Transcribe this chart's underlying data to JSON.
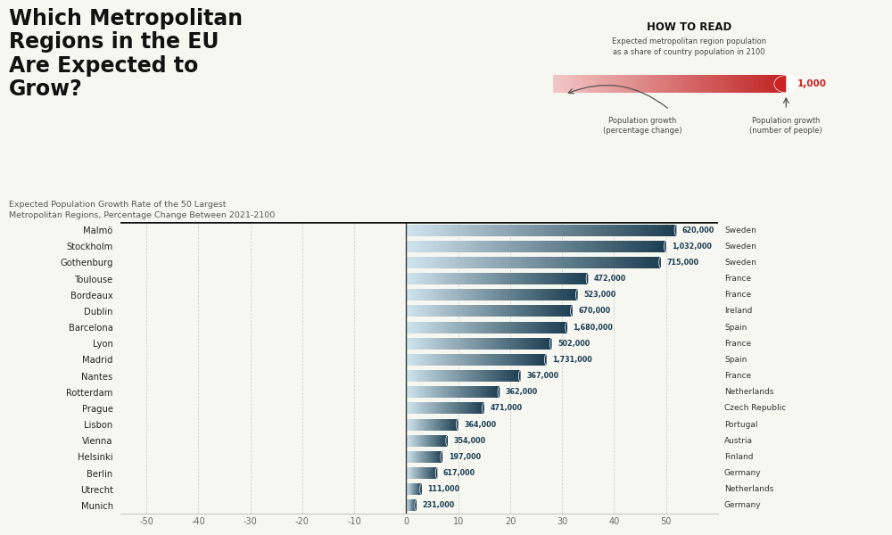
{
  "title_main": "Which Metropolitan\nRegions in the EU\nAre Expected to\nGrow?",
  "subtitle": "Expected Population Growth Rate of the 50 Largest\nMetropolitan Regions, Percentage Change Between 2021-2100",
  "cities": [
    "Malmö",
    "Stockholm",
    "Gothenburg",
    "Toulouse",
    "Bordeaux",
    "Dublin",
    "Barcelona",
    "Lyon",
    "Madrid",
    "Nantes",
    "Rotterdam",
    "Prague",
    "Lisbon",
    "Vienna",
    "Helsinki",
    "Berlin",
    "Utrecht",
    "Munich"
  ],
  "countries": [
    "Sweden",
    "Sweden",
    "Sweden",
    "France",
    "France",
    "Ireland",
    "Spain",
    "France",
    "Spain",
    "France",
    "Netherlands",
    "Czech Republic",
    "Portugal",
    "Austria",
    "Finland",
    "Germany",
    "Netherlands",
    "Germany"
  ],
  "growth_pct": [
    52,
    50,
    49,
    35,
    33,
    32,
    31,
    28,
    27,
    22,
    18,
    15,
    10,
    8,
    7,
    6,
    3,
    2
  ],
  "population_added": [
    "620,000",
    "1,032,000",
    "715,000",
    "472,000",
    "523,000",
    "670,000",
    "1,680,000",
    "502,000",
    "1,731,000",
    "367,000",
    "362,000",
    "471,000",
    "364,000",
    "354,000",
    "197,000",
    "617,000",
    "111,000",
    "231,000"
  ],
  "xlim": [
    -55,
    60
  ],
  "xticks": [
    -50,
    -40,
    -30,
    -20,
    -10,
    0,
    10,
    20,
    30,
    40,
    50
  ],
  "bar_color_dark": "#1b3d50",
  "bar_color_light": "#d0e4ed",
  "bg_color": "#f7f7f2",
  "text_color": "#222222"
}
